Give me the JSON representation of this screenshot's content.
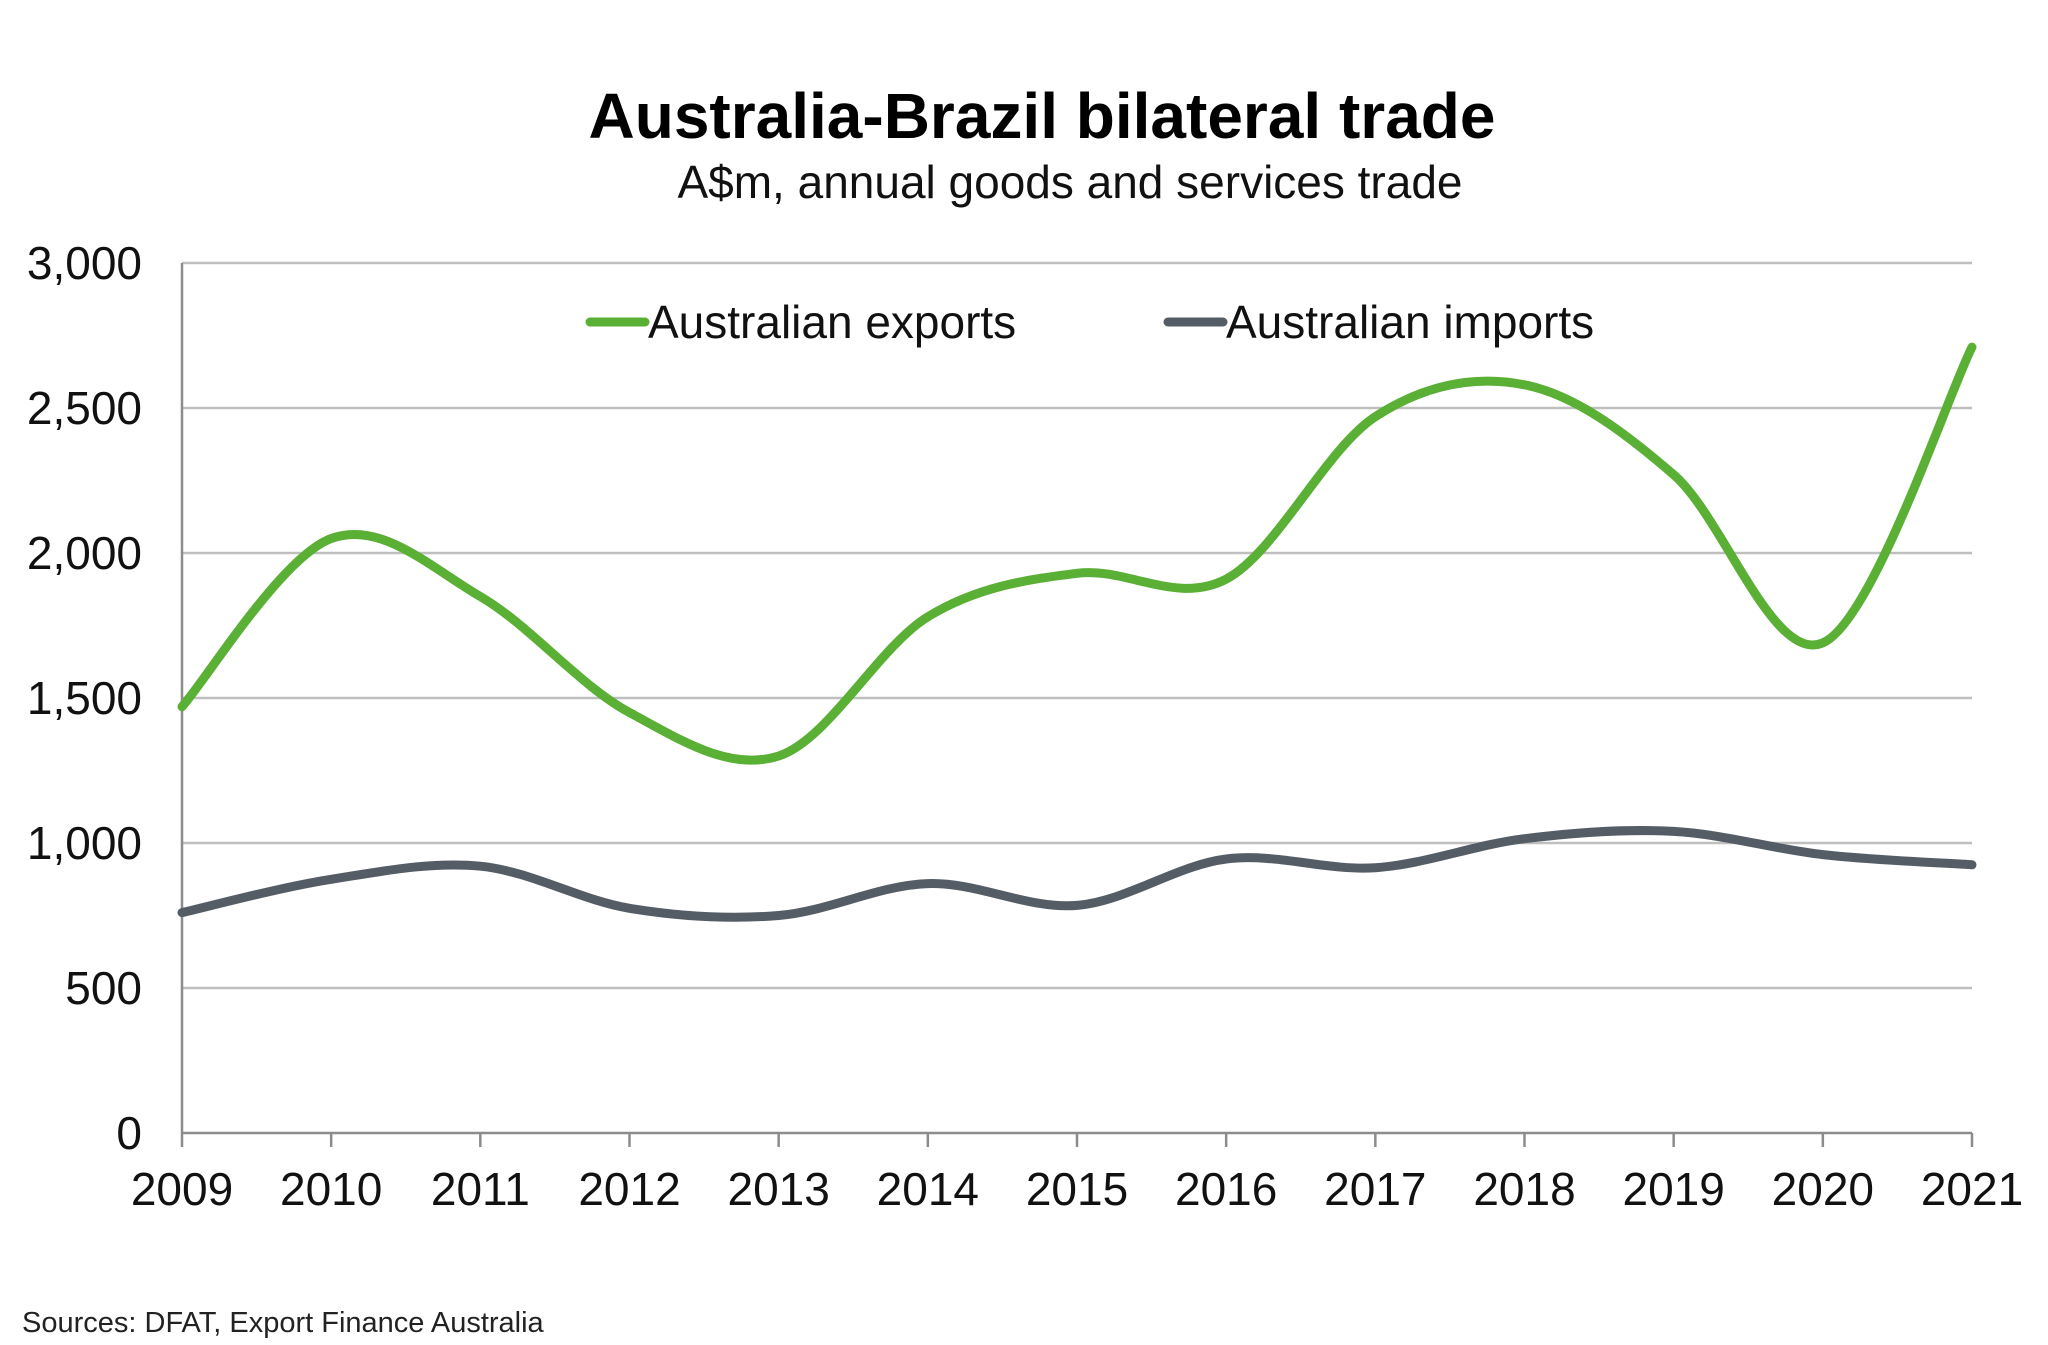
{
  "chart_data": {
    "type": "line",
    "title": "Australia-Brazil bilateral trade",
    "subtitle": "A$m, annual goods and services trade",
    "xlabel": "",
    "ylabel": "",
    "x": [
      "2009",
      "2010",
      "2011",
      "2012",
      "2013",
      "2014",
      "2015",
      "2016",
      "2017",
      "2018",
      "2019",
      "2020",
      "2021"
    ],
    "ylim": [
      0,
      3000
    ],
    "yticks": [
      0,
      500,
      1000,
      1500,
      2000,
      2500,
      3000
    ],
    "ytick_labels": [
      "0",
      "500",
      "1,000",
      "1,500",
      "2,000",
      "2,500",
      "3,000"
    ],
    "grid": true,
    "legend_position": "top-center",
    "series": [
      {
        "name": "Australian exports",
        "color": "#5aaf35",
        "values": [
          1470,
          2050,
          1850,
          1450,
          1300,
          1780,
          1930,
          1910,
          2470,
          2580,
          2270,
          1690,
          2710
        ]
      },
      {
        "name": "Australian imports",
        "color": "#545d66",
        "values": [
          760,
          875,
          920,
          775,
          750,
          860,
          785,
          945,
          915,
          1015,
          1040,
          960,
          925
        ]
      }
    ],
    "source": "Sources: DFAT, Export Finance Australia"
  }
}
